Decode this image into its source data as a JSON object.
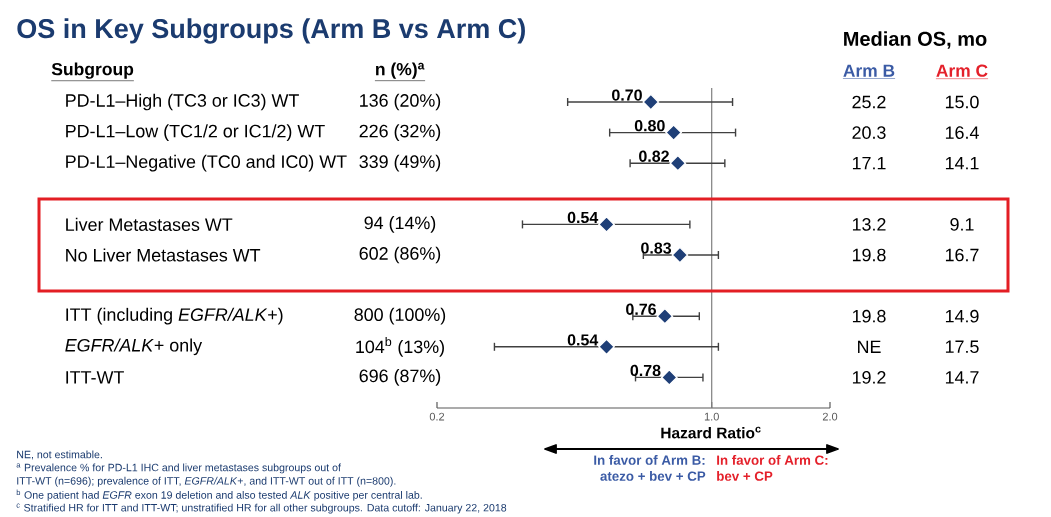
{
  "chart_data": {
    "type": "scatter",
    "title": "OS in Key Subgroups (Arm B vs Arm C)",
    "xlabel": "Hazard Ratio$^{c}$",
    "orientation": "horizontal",
    "categories": [
      "PD-L1–High (TC3 or IC3) WT",
      "PD-L1–Low (TC1/2 or IC1/2) WT",
      "PD-L1–Negative (TC0 and IC0) WT",
      null,
      "Liver Metastases WT",
      "No Liver Metastases WT",
      null,
      "ITT (including *EGFR/ALK*+)",
      "*EGFR/ALK*+ only",
      "ITT-WT"
    ],
    "values": [
      0.7,
      0.8,
      0.82,
      null,
      0.54,
      0.83,
      null,
      0.76,
      0.54,
      0.78
    ],
    "errors": [
      [
        0.43,
        1.13
      ],
      [
        0.55,
        1.15
      ],
      [
        0.62,
        1.08
      ],
      null,
      [
        0.33,
        0.88
      ],
      [
        0.67,
        1.04
      ],
      null,
      [
        0.63,
        0.93
      ],
      [
        0.28,
        1.04
      ],
      [
        0.64,
        0.95
      ]
    ],
    "value_labels": [
      "0.70",
      "0.80",
      "0.82",
      null,
      "0.54",
      "0.83",
      null,
      "0.76",
      "0.54",
      "0.78"
    ],
    "color": "#1f3f77",
    "marker": "diamond",
    "log": "x",
    "xlim": [
      0.2,
      2
    ],
    "xticks": [
      0.2,
      {
        "value": 1,
        "label": "1.0"
      },
      {
        "value": 2,
        "label": "2.0"
      }
    ],
    "ref_lines": [
      {
        "axis": "x",
        "value": 1,
        "color": "#7f7f7f"
      }
    ],
    "annotations": [
      "Subgroup",
      "n (%)$^{a}$",
      "Median OS, mo",
      "Arm B",
      "Arm C",
      "136 (20%)",
      "226 (32%)",
      "339 (49%)",
      "94 (14%)",
      "602 (86%)",
      "800 (100%)",
      "104$^{b}$ (13%)",
      "696 (87%)",
      "25.2",
      "20.3",
      "17.1",
      "13.2",
      "19.8",
      "19.8",
      "NE",
      "19.2",
      "15.0",
      "16.4",
      "14.1",
      "9.1",
      "16.7",
      "14.9",
      "17.5",
      "14.7",
      "In favor of Arm B:",
      "atezo + bev + CP",
      "In favor of Arm C:",
      "bev + CP",
      "NE, not estimable.",
      "$^{a}$ Prevalence % for PD-L1 IHC and liver metastases subgroups out of",
      "ITT-WT (n=696); prevalence of ITT, *EGFR/ALK*+, and ITT-WT out of ITT (n=800).",
      "$^{b}$ One patient had *EGFR* exon 19 deletion and also tested *ALK* positive per central lab.",
      "$^{c}$ Stratified HR for ITT and ITT-WT; unstratified HR for all other subgroups. Data cutoff: January 22, 2018"
    ]
  }
}
